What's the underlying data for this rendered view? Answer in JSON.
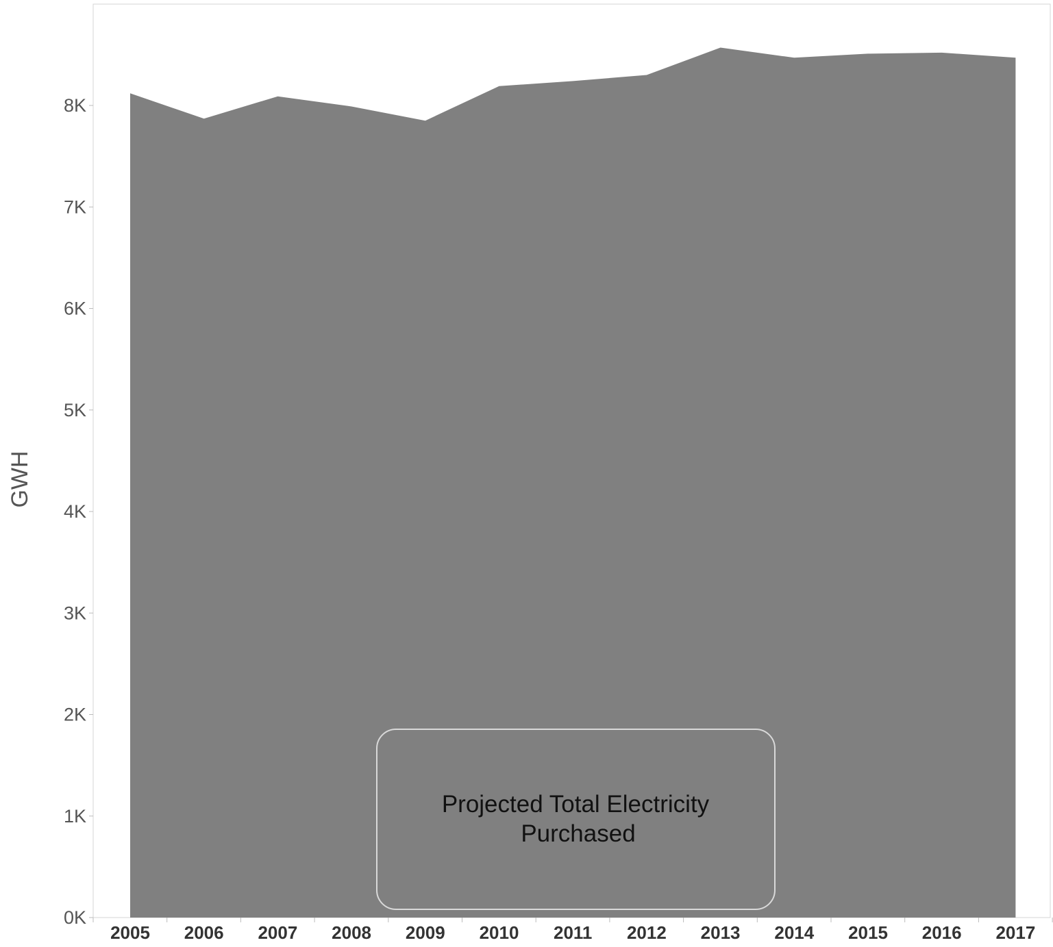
{
  "chart_data": {
    "type": "area",
    "x": [
      "2005",
      "2006",
      "2007",
      "2008",
      "2009",
      "2010",
      "2011",
      "2012",
      "2013",
      "2014",
      "2015",
      "2016",
      "2017"
    ],
    "series": [
      {
        "values": [
          8120,
          7870,
          8090,
          7990,
          7850,
          8190,
          8240,
          8300,
          8570,
          8470,
          8510,
          8520,
          8470
        ],
        "color": "#808080"
      }
    ],
    "ylabel": "GWH",
    "xlabel": "",
    "ylim": [
      0,
      9000
    ],
    "yticks": [
      0,
      1000,
      2000,
      3000,
      4000,
      5000,
      6000,
      7000,
      8000
    ],
    "ytick_labels": [
      "0K",
      "1K",
      "2K",
      "3K",
      "4K",
      "5K",
      "6K",
      "7K",
      "8K"
    ],
    "grid": false,
    "annotation": {
      "line1": "Projected Total Electricity",
      "line2": "Purchased"
    }
  }
}
